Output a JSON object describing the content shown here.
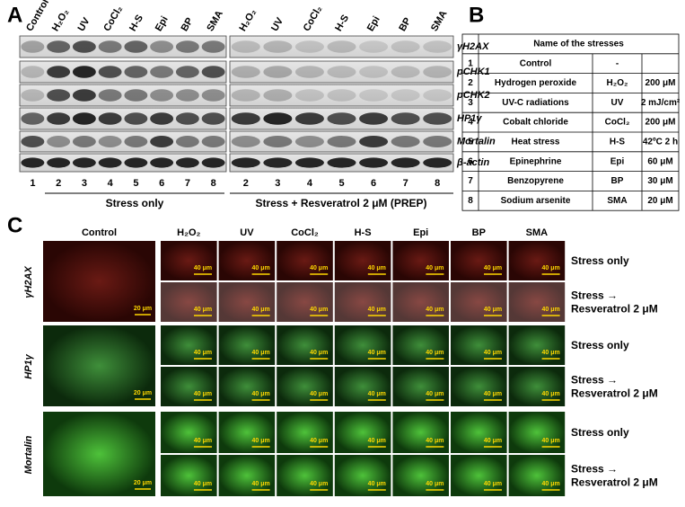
{
  "panel_a": {
    "label": "A",
    "lanes_left": [
      "Control",
      "H₂O₂",
      "UV",
      "CoCl₂",
      "H-S",
      "Epi",
      "BP",
      "SMA"
    ],
    "lanes_right": [
      "H₂O₂",
      "UV",
      "CoCl₂",
      "H-S",
      "Epi",
      "BP",
      "SMA"
    ],
    "proteins": [
      "γH2AX",
      "pCHK1",
      "pCHK2",
      "HP1γ",
      "Mortalin",
      "β-actin"
    ],
    "lane_numbers_left": [
      1,
      2,
      3,
      4,
      5,
      6,
      7,
      8
    ],
    "lane_numbers_right": [
      2,
      3,
      4,
      5,
      6,
      7,
      8
    ],
    "group_left": "Stress only",
    "group_right": "Stress + Resveratrol 2 μM (PREP)"
  },
  "panel_b": {
    "label": "B",
    "table": {
      "header": "Name of the stresses",
      "rows": [
        [
          "1",
          "Control",
          "-"
        ],
        [
          "2",
          "Hydrogen peroxide",
          "H₂O₂",
          "200 μM"
        ],
        [
          "3",
          "UV-C radiations",
          "UV",
          "2 mJ/cm²"
        ],
        [
          "4",
          "Cobalt chloride",
          "CoCl₂",
          "200 μM"
        ],
        [
          "5",
          "Heat stress",
          "H-S",
          "42ºC 2 h"
        ],
        [
          "6",
          "Epinephrine",
          "Epi",
          "60 μM"
        ],
        [
          "7",
          "Benzopyrene",
          "BP",
          "30 μM"
        ],
        [
          "8",
          "Sodium arsenite",
          "SMA",
          "20 μM"
        ]
      ]
    }
  },
  "panel_c": {
    "label": "C",
    "columns": [
      "Control",
      "H₂O₂",
      "UV",
      "CoCl₂",
      "H-S",
      "Epi",
      "BP",
      "SMA"
    ],
    "markers": [
      "γH2AX",
      "HP1γ",
      "Mortalin"
    ],
    "conditions": [
      [
        "Stress only"
      ],
      [
        "Stress →",
        "Resveratrol 2 μM"
      ]
    ],
    "scale_control": "20 μm",
    "scale_treated": "40 μm"
  }
}
